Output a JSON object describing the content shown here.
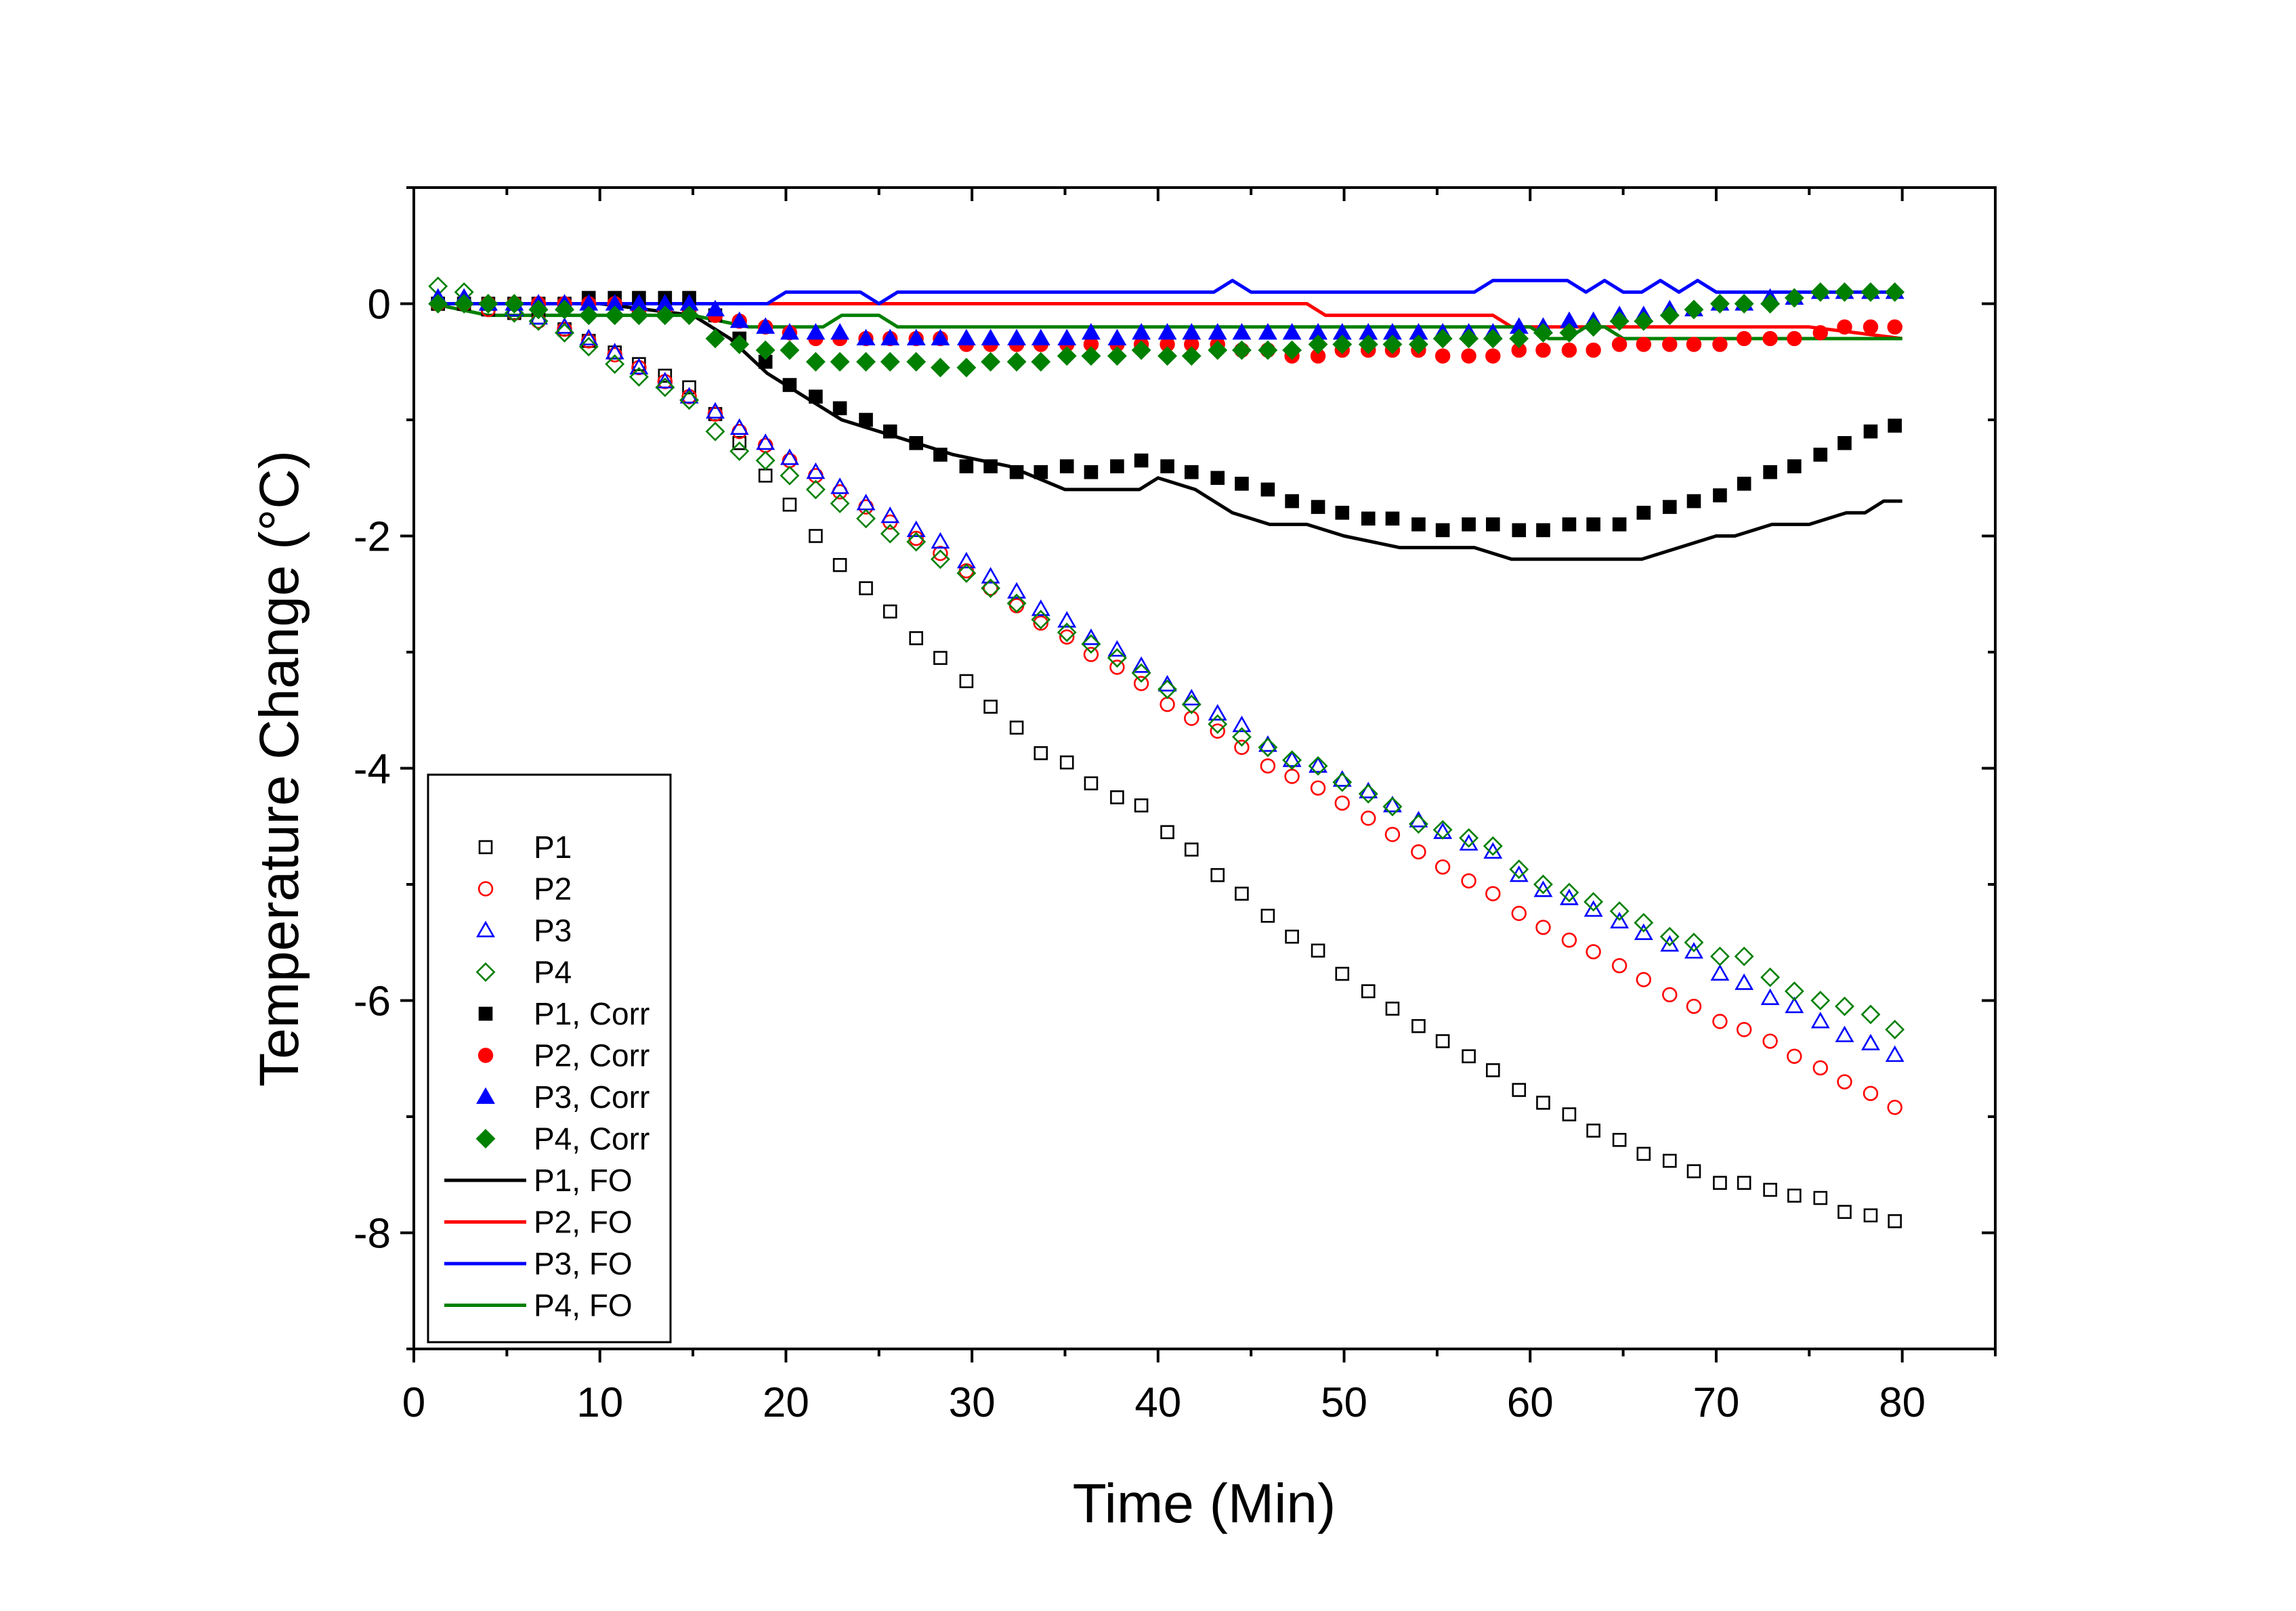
{
  "chart_data": {
    "type": "scatter",
    "title": "",
    "xlabel": "Time (Min)",
    "ylabel": "Temperature Change (°C)",
    "xlim": [
      0,
      85
    ],
    "ylim": [
      -9,
      1
    ],
    "xticks": [
      0,
      10,
      20,
      30,
      40,
      50,
      60,
      70,
      80
    ],
    "yticks": [
      -8,
      -6,
      -4,
      -2,
      0
    ],
    "legend_position": "bottom-left",
    "grid": false,
    "x": [
      1.3,
      2.7,
      4.0,
      5.4,
      6.7,
      8.1,
      9.4,
      10.8,
      12.1,
      13.5,
      14.8,
      16.2,
      17.5,
      18.9,
      20.2,
      21.6,
      22.9,
      24.3,
      25.6,
      27.0,
      28.3,
      29.7,
      31.0,
      32.4,
      33.7,
      35.1,
      36.4,
      37.8,
      39.1,
      40.5,
      41.8,
      43.2,
      44.5,
      45.9,
      47.2,
      48.6,
      49.9,
      51.3,
      52.6,
      54.0,
      55.3,
      56.7,
      58.0,
      59.4,
      60.7,
      62.1,
      63.4,
      64.8,
      66.1,
      67.5,
      68.8,
      70.2,
      71.5,
      72.9,
      74.2,
      75.6,
      76.9,
      78.3,
      79.6
    ],
    "series": [
      {
        "name": "P1",
        "kind": "marker",
        "marker": "square",
        "filled": false,
        "color": "#000000",
        "values": [
          0.0,
          0.0,
          -0.05,
          -0.08,
          -0.12,
          -0.22,
          -0.32,
          -0.42,
          -0.52,
          -0.62,
          -0.72,
          -0.95,
          -1.2,
          -1.48,
          -1.73,
          -2.0,
          -2.25,
          -2.45,
          -2.65,
          -2.88,
          -3.05,
          -3.25,
          -3.47,
          -3.65,
          -3.87,
          -3.95,
          -4.13,
          -4.25,
          -4.32,
          -4.55,
          -4.7,
          -4.92,
          -5.08,
          -5.27,
          -5.45,
          -5.57,
          -5.77,
          -5.92,
          -6.07,
          -6.22,
          -6.35,
          -6.48,
          -6.6,
          -6.77,
          -6.88,
          -6.98,
          -7.12,
          -7.2,
          -7.32,
          -7.38,
          -7.47,
          -7.57,
          -7.57,
          -7.63,
          -7.68,
          -7.7,
          -7.82,
          -7.85,
          -7.9
        ]
      },
      {
        "name": "P2",
        "kind": "marker",
        "marker": "circle",
        "filled": false,
        "color": "#ff0000",
        "values": [
          0.0,
          0.0,
          -0.05,
          -0.08,
          -0.15,
          -0.22,
          -0.32,
          -0.44,
          -0.55,
          -0.67,
          -0.8,
          -0.95,
          -1.1,
          -1.22,
          -1.35,
          -1.48,
          -1.62,
          -1.75,
          -1.88,
          -2.02,
          -2.15,
          -2.3,
          -2.45,
          -2.6,
          -2.75,
          -2.87,
          -3.02,
          -3.13,
          -3.27,
          -3.45,
          -3.57,
          -3.68,
          -3.82,
          -3.98,
          -4.07,
          -4.17,
          -4.3,
          -4.43,
          -4.57,
          -4.72,
          -4.85,
          -4.97,
          -5.08,
          -5.25,
          -5.37,
          -5.48,
          -5.58,
          -5.7,
          -5.82,
          -5.95,
          -6.05,
          -6.18,
          -6.25,
          -6.35,
          -6.48,
          -6.58,
          -6.7,
          -6.8,
          -6.92
        ]
      },
      {
        "name": "P3",
        "kind": "marker",
        "marker": "triangle",
        "filled": false,
        "color": "#0000ff",
        "values": [
          0.05,
          0.05,
          0.0,
          -0.05,
          -0.12,
          -0.2,
          -0.3,
          -0.42,
          -0.55,
          -0.67,
          -0.8,
          -0.93,
          -1.07,
          -1.2,
          -1.33,
          -1.45,
          -1.58,
          -1.72,
          -1.83,
          -1.95,
          -2.05,
          -2.22,
          -2.35,
          -2.48,
          -2.63,
          -2.73,
          -2.88,
          -2.98,
          -3.12,
          -3.28,
          -3.4,
          -3.53,
          -3.63,
          -3.8,
          -3.93,
          -3.98,
          -4.1,
          -4.2,
          -4.32,
          -4.45,
          -4.55,
          -4.65,
          -4.72,
          -4.92,
          -5.05,
          -5.12,
          -5.22,
          -5.32,
          -5.42,
          -5.52,
          -5.58,
          -5.77,
          -5.85,
          -5.98,
          -6.05,
          -6.18,
          -6.3,
          -6.37,
          -6.47
        ]
      },
      {
        "name": "P4",
        "kind": "marker",
        "marker": "diamond",
        "filled": false,
        "color": "#008000",
        "values": [
          0.15,
          0.1,
          0.0,
          -0.08,
          -0.15,
          -0.25,
          -0.37,
          -0.52,
          -0.63,
          -0.72,
          -0.83,
          -1.1,
          -1.27,
          -1.35,
          -1.48,
          -1.6,
          -1.72,
          -1.85,
          -1.98,
          -2.05,
          -2.2,
          -2.32,
          -2.45,
          -2.58,
          -2.72,
          -2.83,
          -2.93,
          -3.05,
          -3.18,
          -3.32,
          -3.45,
          -3.62,
          -3.73,
          -3.82,
          -3.93,
          -3.98,
          -4.12,
          -4.22,
          -4.33,
          -4.48,
          -4.53,
          -4.6,
          -4.67,
          -4.87,
          -5.0,
          -5.07,
          -5.15,
          -5.23,
          -5.33,
          -5.45,
          -5.5,
          -5.62,
          -5.62,
          -5.8,
          -5.92,
          -6.0,
          -6.05,
          -6.12,
          -6.25
        ]
      },
      {
        "name": "P1, Corr",
        "kind": "marker",
        "marker": "square",
        "filled": true,
        "color": "#000000",
        "values": [
          0.0,
          0.0,
          0.0,
          0.0,
          0.0,
          0.0,
          0.05,
          0.05,
          0.05,
          0.05,
          0.05,
          -0.1,
          -0.3,
          -0.5,
          -0.7,
          -0.8,
          -0.9,
          -1.0,
          -1.1,
          -1.2,
          -1.3,
          -1.4,
          -1.4,
          -1.45,
          -1.45,
          -1.4,
          -1.45,
          -1.4,
          -1.35,
          -1.4,
          -1.45,
          -1.5,
          -1.55,
          -1.6,
          -1.7,
          -1.75,
          -1.8,
          -1.85,
          -1.85,
          -1.9,
          -1.95,
          -1.9,
          -1.9,
          -1.95,
          -1.95,
          -1.9,
          -1.9,
          -1.9,
          -1.8,
          -1.75,
          -1.7,
          -1.65,
          -1.55,
          -1.45,
          -1.4,
          -1.3,
          -1.2,
          -1.1,
          -1.05
        ]
      },
      {
        "name": "P2, Corr",
        "kind": "marker",
        "marker": "circle",
        "filled": true,
        "color": "#ff0000",
        "values": [
          0.0,
          0.0,
          0.0,
          0.0,
          0.0,
          0.0,
          0.0,
          0.0,
          -0.05,
          -0.05,
          -0.05,
          -0.1,
          -0.15,
          -0.2,
          -0.25,
          -0.3,
          -0.3,
          -0.3,
          -0.3,
          -0.3,
          -0.3,
          -0.35,
          -0.35,
          -0.35,
          -0.35,
          -0.35,
          -0.35,
          -0.35,
          -0.35,
          -0.35,
          -0.35,
          -0.35,
          -0.4,
          -0.4,
          -0.45,
          -0.45,
          -0.4,
          -0.4,
          -0.4,
          -0.4,
          -0.45,
          -0.45,
          -0.45,
          -0.4,
          -0.4,
          -0.4,
          -0.4,
          -0.35,
          -0.35,
          -0.35,
          -0.35,
          -0.35,
          -0.3,
          -0.3,
          -0.3,
          -0.25,
          -0.2,
          -0.2,
          -0.2
        ]
      },
      {
        "name": "P3, Corr",
        "kind": "marker",
        "marker": "triangle",
        "filled": true,
        "color": "#0000ff",
        "values": [
          0.05,
          0.05,
          0.0,
          0.0,
          0.0,
          0.0,
          0.0,
          0.0,
          0.0,
          0.0,
          0.0,
          -0.05,
          -0.15,
          -0.2,
          -0.25,
          -0.25,
          -0.25,
          -0.3,
          -0.3,
          -0.3,
          -0.3,
          -0.3,
          -0.3,
          -0.3,
          -0.3,
          -0.3,
          -0.25,
          -0.3,
          -0.25,
          -0.25,
          -0.25,
          -0.25,
          -0.25,
          -0.25,
          -0.25,
          -0.25,
          -0.25,
          -0.25,
          -0.25,
          -0.25,
          -0.25,
          -0.25,
          -0.25,
          -0.2,
          -0.2,
          -0.15,
          -0.15,
          -0.1,
          -0.1,
          -0.05,
          -0.05,
          0.0,
          0.0,
          0.05,
          0.05,
          0.1,
          0.1,
          0.1,
          0.1
        ]
      },
      {
        "name": "P4, Corr",
        "kind": "marker",
        "marker": "diamond",
        "filled": true,
        "color": "#008000",
        "values": [
          0.0,
          0.0,
          0.0,
          0.0,
          -0.05,
          -0.05,
          -0.1,
          -0.1,
          -0.1,
          -0.1,
          -0.1,
          -0.3,
          -0.35,
          -0.4,
          -0.4,
          -0.5,
          -0.5,
          -0.5,
          -0.5,
          -0.5,
          -0.55,
          -0.55,
          -0.5,
          -0.5,
          -0.5,
          -0.45,
          -0.45,
          -0.45,
          -0.4,
          -0.45,
          -0.45,
          -0.4,
          -0.4,
          -0.4,
          -0.4,
          -0.35,
          -0.35,
          -0.35,
          -0.35,
          -0.35,
          -0.3,
          -0.3,
          -0.3,
          -0.3,
          -0.25,
          -0.25,
          -0.2,
          -0.15,
          -0.15,
          -0.1,
          -0.05,
          0.0,
          0.0,
          0.0,
          0.05,
          0.1,
          0.1,
          0.1,
          0.1
        ]
      },
      {
        "name": "P1, FO",
        "kind": "line",
        "color": "#000000",
        "x": [
          1,
          5,
          10,
          15,
          17,
          19,
          21,
          23,
          25,
          27,
          29,
          32,
          35,
          39,
          40,
          42,
          44,
          46,
          48,
          50,
          53,
          57,
          59,
          63,
          66,
          68,
          70,
          71,
          73,
          75,
          77,
          78,
          79,
          80
        ],
        "values": [
          0.0,
          0.0,
          0.0,
          -0.1,
          -0.3,
          -0.6,
          -0.8,
          -1.0,
          -1.1,
          -1.2,
          -1.3,
          -1.4,
          -1.6,
          -1.6,
          -1.5,
          -1.6,
          -1.8,
          -1.9,
          -1.9,
          -2.0,
          -2.1,
          -2.1,
          -2.2,
          -2.2,
          -2.2,
          -2.1,
          -2.0,
          -2.0,
          -1.9,
          -1.9,
          -1.8,
          -1.8,
          -1.7,
          -1.7
        ]
      },
      {
        "name": "P2, FO",
        "kind": "line",
        "color": "#ff0000",
        "x": [
          1,
          15,
          17,
          48,
          49,
          58,
          59,
          75,
          80
        ],
        "values": [
          0.0,
          0.0,
          0.0,
          0.0,
          -0.1,
          -0.1,
          -0.2,
          -0.2,
          -0.3
        ]
      },
      {
        "name": "P3, FO",
        "kind": "line",
        "color": "#0000ff",
        "x": [
          1,
          19,
          20,
          24,
          25,
          26,
          38,
          39,
          40,
          42,
          43,
          44,
          45,
          57,
          58,
          62,
          63,
          64,
          65,
          66,
          67,
          68,
          69,
          70,
          71,
          80
        ],
        "values": [
          0.0,
          0.0,
          0.1,
          0.1,
          0.0,
          0.1,
          0.1,
          0.1,
          0.1,
          0.1,
          0.1,
          0.2,
          0.1,
          0.1,
          0.2,
          0.2,
          0.1,
          0.2,
          0.1,
          0.1,
          0.2,
          0.1,
          0.2,
          0.1,
          0.1,
          0.1
        ]
      },
      {
        "name": "P4, FO",
        "kind": "line",
        "color": "#008000",
        "x": [
          1,
          4,
          15,
          18,
          22,
          23,
          24,
          25,
          26,
          27,
          58,
          60,
          61,
          62,
          63,
          64,
          65,
          80
        ],
        "values": [
          0.0,
          -0.1,
          -0.1,
          -0.2,
          -0.2,
          -0.1,
          -0.1,
          -0.1,
          -0.2,
          -0.2,
          -0.2,
          -0.2,
          -0.3,
          -0.3,
          -0.2,
          -0.2,
          -0.3,
          -0.3
        ]
      }
    ]
  }
}
